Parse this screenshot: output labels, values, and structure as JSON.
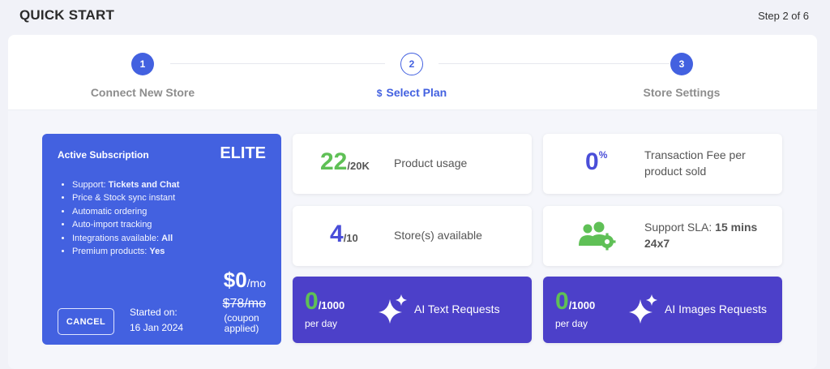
{
  "header": {
    "title": "QUICK START",
    "step_indicator": "Step 2 of 6"
  },
  "stepper": {
    "steps": [
      {
        "number": "1",
        "label": "Connect New Store"
      },
      {
        "number": "2",
        "label": "Select Plan",
        "icon": "$"
      },
      {
        "number": "3",
        "label": "Store Settings"
      }
    ]
  },
  "subscription": {
    "heading": "Active Subscription",
    "plan": "ELITE",
    "features": [
      {
        "text": "Support: ",
        "bold": "Tickets and Chat"
      },
      {
        "text": "Price & Stock sync instant",
        "bold": ""
      },
      {
        "text": "Automatic ordering",
        "bold": ""
      },
      {
        "text": "Auto-import tracking",
        "bold": ""
      },
      {
        "text": "Integrations available: ",
        "bold": "All"
      },
      {
        "text": "Premium products: ",
        "bold": "Yes"
      }
    ],
    "price": "$0",
    "price_unit": "/mo",
    "old_price": "$78/mo",
    "coupon_note": "(coupon applied)",
    "cancel_label": "CANCEL",
    "started_label": "Started on:",
    "started_date": "16 Jan 2024"
  },
  "stats": {
    "product_usage": {
      "value": "22",
      "limit": "/20K",
      "label": "Product usage"
    },
    "transaction_fee": {
      "value": "0",
      "unit": "%",
      "label": "Transaction Fee per product sold"
    },
    "stores": {
      "value": "4",
      "limit": "/10",
      "label": "Store(s) available"
    },
    "support_sla": {
      "label": "Support SLA: ",
      "bold": "15 mins 24x7",
      "icon": "users-gear-icon"
    },
    "ai_text": {
      "value": "0",
      "limit": "/1000",
      "period": "per day",
      "label": "AI Text Requests",
      "icon": "sparkle-icon"
    },
    "ai_images": {
      "value": "0",
      "limit": "/1000",
      "period": "per day",
      "label": "AI Images Requests",
      "icon": "sparkle-icon"
    }
  },
  "colors": {
    "primary": "#4361e0",
    "purple": "#4c40c9",
    "green": "#5fc056",
    "background": "#f1f2f8"
  }
}
